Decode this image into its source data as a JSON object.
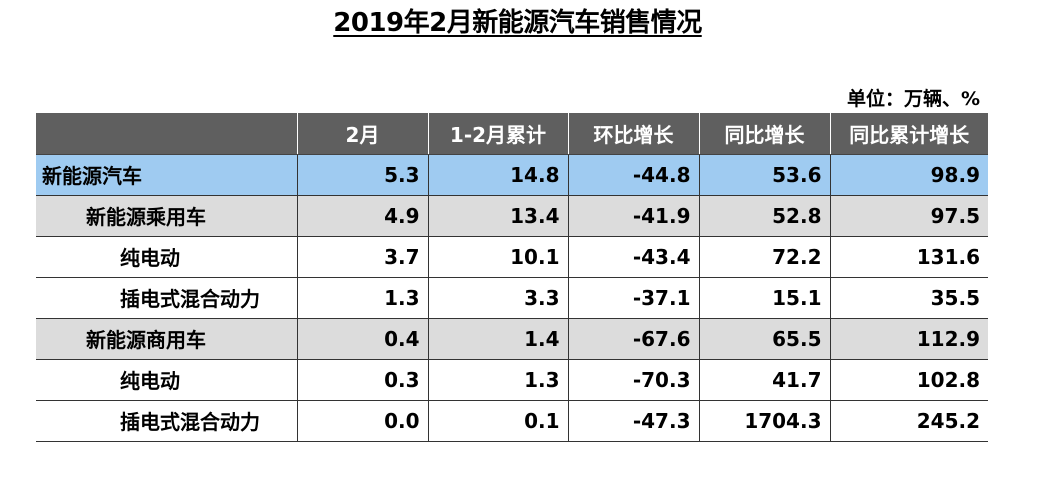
{
  "title": "2019年2月新能源汽车销售情况",
  "unit": "单位：万辆、%",
  "table": {
    "headers": [
      "",
      "2月",
      "1-2月累计",
      "环比增长",
      "同比增长",
      "同比累计增长"
    ],
    "rows": [
      {
        "level": 0,
        "label": "新能源汽车",
        "values": [
          "5.3",
          "14.8",
          "-44.8",
          "53.6",
          "98.9"
        ]
      },
      {
        "level": 1,
        "label": "新能源乘用车",
        "values": [
          "4.9",
          "13.4",
          "-41.9",
          "52.8",
          "97.5"
        ]
      },
      {
        "level": 2,
        "label": "纯电动",
        "values": [
          "3.7",
          "10.1",
          "-43.4",
          "72.2",
          "131.6"
        ]
      },
      {
        "level": 2,
        "label": "插电式混合动力",
        "values": [
          "1.3",
          "3.3",
          "-37.1",
          "15.1",
          "35.5"
        ]
      },
      {
        "level": 1,
        "label": "新能源商用车",
        "values": [
          "0.4",
          "1.4",
          "-67.6",
          "65.5",
          "112.9"
        ]
      },
      {
        "level": 2,
        "label": "纯电动",
        "values": [
          "0.3",
          "1.3",
          "-70.3",
          "41.7",
          "102.8"
        ]
      },
      {
        "level": 2,
        "label": "插电式混合动力",
        "values": [
          "0.0",
          "0.1",
          "-47.3",
          "1704.3",
          "245.2"
        ]
      }
    ]
  },
  "colors": {
    "header_bg": "#5f5f5f",
    "highlight_row_bg": "#9fcbf1",
    "subtotal_row_bg": "#dcdcdc"
  }
}
